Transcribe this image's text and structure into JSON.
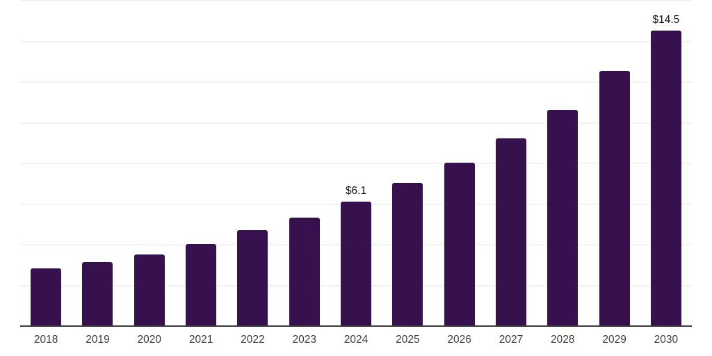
{
  "chart_data": {
    "type": "bar",
    "categories": [
      "2018",
      "2019",
      "2020",
      "2021",
      "2022",
      "2023",
      "2024",
      "2025",
      "2026",
      "2027",
      "2028",
      "2029",
      "2030"
    ],
    "values": [
      2.8,
      3.1,
      3.5,
      4.0,
      4.7,
      5.3,
      6.1,
      7.0,
      8.0,
      9.2,
      10.6,
      12.5,
      14.5
    ],
    "point_labels": [
      "",
      "",
      "",
      "",
      "",
      "",
      "$6.1",
      "",
      "",
      "",
      "",
      "",
      "$14.5"
    ],
    "unit_prefix": "$",
    "ylim": [
      0,
      16
    ],
    "gridline_values": [
      2,
      4,
      6,
      8,
      10,
      12,
      14,
      16
    ],
    "grid": "horizontal",
    "legend_position": "none",
    "colors": {
      "bar": "#37114d",
      "grid_line": "#f3f3f3",
      "axis_line": "#3c3c3c",
      "tick_label": "#3d3d3d",
      "data_label": "#101010",
      "background": "#ffffff"
    }
  }
}
